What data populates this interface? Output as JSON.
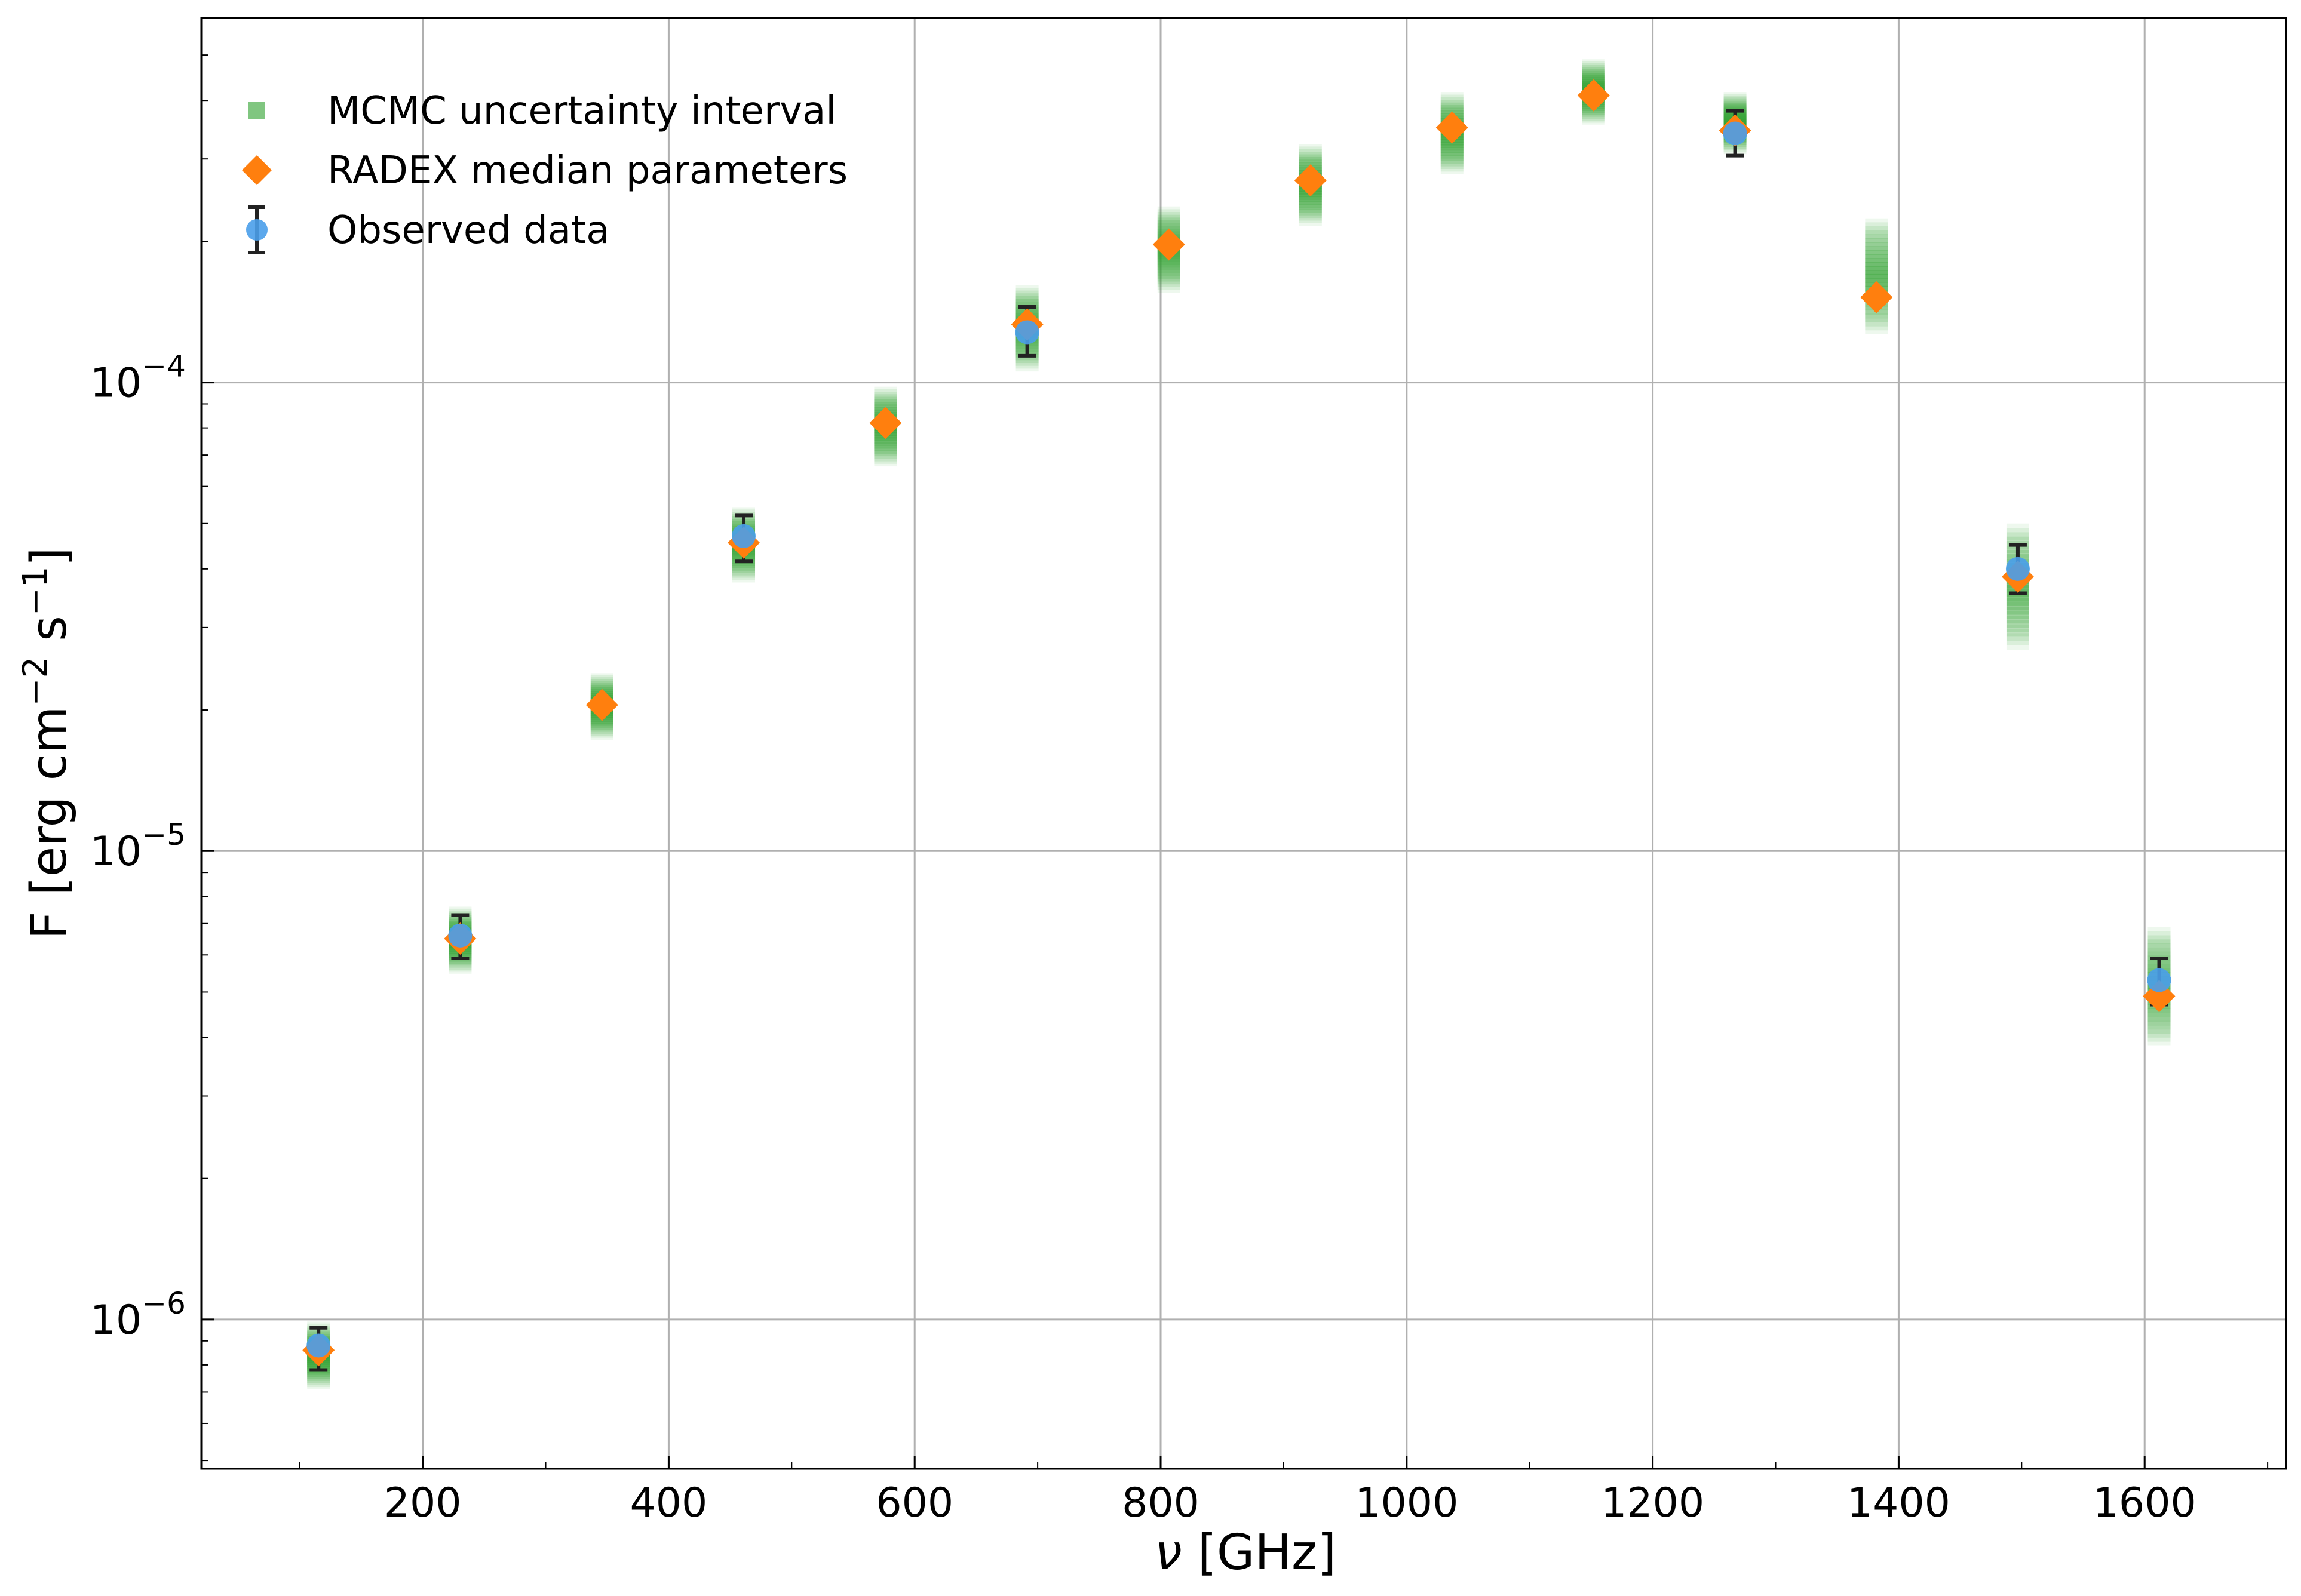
{
  "chart_data": {
    "type": "scatter",
    "xlabel_symbol": "ν",
    "xlabel_unit": "[GHz]",
    "ylabel": "F [erg cm",
    "ylabel_exp1": "−2",
    "ylabel_mid": " s",
    "ylabel_exp2": "−1",
    "ylabel_end": "]",
    "xlim": [
      20,
      1715
    ],
    "ylim": [
      4.8e-07,
      0.0006
    ],
    "yscale": "log",
    "grid": true,
    "legend_position": "top-left",
    "x_ticks": [
      200,
      400,
      600,
      800,
      1000,
      1200,
      1400,
      1600
    ],
    "y_ticks": [
      {
        "value": 1e-06,
        "base": "10",
        "exp": "−6"
      },
      {
        "value": 1e-05,
        "base": "10",
        "exp": "−5"
      },
      {
        "value": 0.0001,
        "base": "10",
        "exp": "−4"
      }
    ],
    "legend": [
      {
        "label": "MCMC uncertainty interval",
        "key": "mcmc"
      },
      {
        "label": "RADEX median parameters",
        "key": "radex"
      },
      {
        "label": "Observed data",
        "key": "observed"
      }
    ],
    "colors": {
      "mcmc": "#2ca02c",
      "radex": "#ff7f0e",
      "observed": "#4a9fea",
      "errorbar": "#222222",
      "grid": "#b0b0b0"
    },
    "series": [
      {
        "name": "MCMC uncertainty interval",
        "points": [
          {
            "x": 115.3,
            "low": 7.4e-07,
            "high": 9.5e-07
          },
          {
            "x": 230.5,
            "low": 5.7e-06,
            "high": 7.3e-06
          },
          {
            "x": 345.8,
            "low": 1.8e-05,
            "high": 2.3e-05
          },
          {
            "x": 461.0,
            "low": 3.9e-05,
            "high": 5.2e-05
          },
          {
            "x": 576.3,
            "low": 6.9e-05,
            "high": 9.4e-05
          },
          {
            "x": 691.5,
            "low": 0.00011,
            "high": 0.000155
          },
          {
            "x": 806.7,
            "low": 0.000162,
            "high": 0.000228
          },
          {
            "x": 921.8,
            "low": 0.000225,
            "high": 0.00031
          },
          {
            "x": 1036.9,
            "low": 0.00029,
            "high": 0.0004
          },
          {
            "x": 1152.0,
            "low": 0.00037,
            "high": 0.00047
          },
          {
            "x": 1267.0,
            "low": 0.00032,
            "high": 0.0004
          },
          {
            "x": 1382.0,
            "low": 0.000132,
            "high": 0.000215
          },
          {
            "x": 1496.9,
            "low": 2.8e-05,
            "high": 4.8e-05
          },
          {
            "x": 1611.8,
            "low": 4e-06,
            "high": 6.6e-06
          }
        ]
      },
      {
        "name": "RADEX median parameters",
        "points": [
          {
            "x": 115.3,
            "y": 8.6e-07
          },
          {
            "x": 230.5,
            "y": 6.5e-06
          },
          {
            "x": 345.8,
            "y": 2.05e-05
          },
          {
            "x": 461.0,
            "y": 4.55e-05
          },
          {
            "x": 576.3,
            "y": 8.2e-05
          },
          {
            "x": 691.5,
            "y": 0.000133
          },
          {
            "x": 806.7,
            "y": 0.000197
          },
          {
            "x": 921.8,
            "y": 0.00027
          },
          {
            "x": 1036.9,
            "y": 0.00035
          },
          {
            "x": 1152.0,
            "y": 0.00041
          },
          {
            "x": 1267.0,
            "y": 0.000345
          },
          {
            "x": 1382.0,
            "y": 0.000152
          },
          {
            "x": 1496.9,
            "y": 3.85e-05
          },
          {
            "x": 1611.8,
            "y": 4.9e-06
          }
        ]
      },
      {
        "name": "Observed data",
        "points": [
          {
            "x": 115.3,
            "y": 8.8e-07,
            "low": 7.8e-07,
            "high": 9.6e-07
          },
          {
            "x": 230.5,
            "y": 6.6e-06,
            "low": 5.9e-06,
            "high": 7.3e-06
          },
          {
            "x": 461.0,
            "y": 4.7e-05,
            "low": 4.15e-05,
            "high": 5.2e-05
          },
          {
            "x": 691.5,
            "y": 0.000128,
            "low": 0.000114,
            "high": 0.000145
          },
          {
            "x": 1267.0,
            "y": 0.00034,
            "low": 0.000305,
            "high": 0.00038
          },
          {
            "x": 1496.9,
            "y": 4e-05,
            "low": 3.55e-05,
            "high": 4.5e-05
          },
          {
            "x": 1611.8,
            "y": 5.3e-06,
            "low": 4.7e-06,
            "high": 5.9e-06
          }
        ]
      }
    ]
  }
}
